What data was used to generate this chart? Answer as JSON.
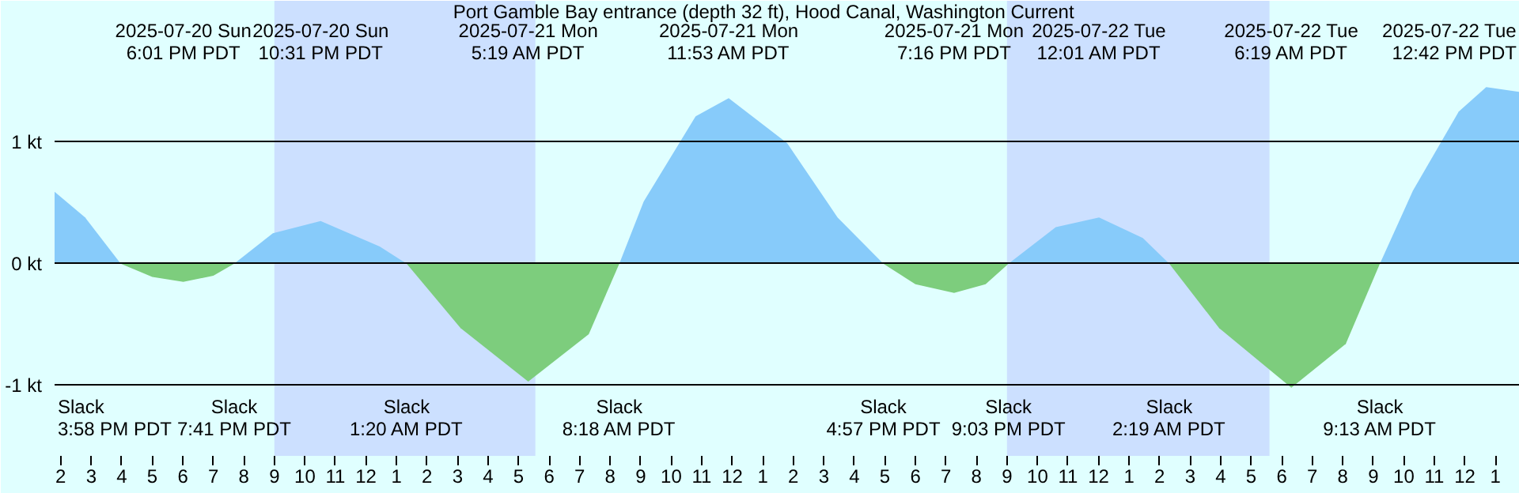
{
  "chart_data": {
    "type": "area",
    "title": "Port Gamble Bay entrance (depth 32 ft), Hood Canal, Washington Current",
    "x": [
      "2025-07-20T13:48",
      "2025-07-20T14:48",
      "2025-07-20T15:58",
      "2025-07-20T17:00",
      "2025-07-20T18:01",
      "2025-07-20T19:00",
      "2025-07-20T19:41",
      "2025-07-20T20:57",
      "2025-07-20T22:31",
      "2025-07-21T00:27",
      "2025-07-21T01:20",
      "2025-07-21T03:06",
      "2025-07-21T05:19",
      "2025-07-21T07:18",
      "2025-07-21T08:18",
      "2025-07-21T09:06",
      "2025-07-21T10:48",
      "2025-07-21T11:53",
      "2025-07-21T13:48",
      "2025-07-21T15:27",
      "2025-07-21T16:57",
      "2025-07-21T18:00",
      "2025-07-21T19:16",
      "2025-07-21T20:18",
      "2025-07-21T21:03",
      "2025-07-21T22:36",
      "2025-07-22T00:01",
      "2025-07-22T01:27",
      "2025-07-22T02:19",
      "2025-07-22T03:57",
      "2025-07-22T06:19",
      "2025-07-22T08:06",
      "2025-07-22T09:13",
      "2025-07-22T10:18",
      "2025-07-22T11:48",
      "2025-07-22T12:42",
      "2025-07-22T13:48"
    ],
    "series": [
      {
        "color": "#87cbfa",
        "values": [
          0.59,
          0.38,
          0,
          null,
          null,
          null,
          0,
          0.25,
          0.35,
          0.14,
          0,
          null,
          null,
          null,
          0,
          0.51,
          1.21,
          1.36,
          0.99,
          0.38,
          0,
          null,
          null,
          null,
          0,
          0.3,
          0.38,
          0.21,
          0,
          null,
          null,
          null,
          0,
          0.6,
          1.25,
          1.45,
          1.41
        ]
      },
      {
        "color": "#7dcd7d",
        "values": [
          null,
          null,
          0,
          -0.11,
          -0.15,
          -0.1,
          0,
          null,
          null,
          null,
          0,
          -0.53,
          -0.97,
          -0.58,
          0,
          null,
          null,
          null,
          null,
          null,
          0,
          -0.17,
          -0.24,
          -0.17,
          0,
          null,
          null,
          null,
          0,
          -0.53,
          -1.02,
          -0.66,
          0,
          null,
          null,
          null,
          null
        ]
      }
    ],
    "xlim": [
      "2025-07-20T13:48",
      "2025-07-22T13:48"
    ],
    "xticks": [
      {
        "value": "2025-07-20T14:00",
        "label": "2"
      },
      {
        "value": "2025-07-20T15:00",
        "label": "3"
      },
      {
        "value": "2025-07-20T16:00",
        "label": "4"
      },
      {
        "value": "2025-07-20T17:00",
        "label": "5"
      },
      {
        "value": "2025-07-20T18:00",
        "label": "6"
      },
      {
        "value": "2025-07-20T19:00",
        "label": "7"
      },
      {
        "value": "2025-07-20T20:00",
        "label": "8"
      },
      {
        "value": "2025-07-20T21:00",
        "label": "9"
      },
      {
        "value": "2025-07-20T22:00",
        "label": "10"
      },
      {
        "value": "2025-07-20T23:00",
        "label": "11"
      },
      {
        "value": "2025-07-21T00:00",
        "label": "12"
      },
      {
        "value": "2025-07-21T01:00",
        "label": "1"
      },
      {
        "value": "2025-07-21T02:00",
        "label": "2"
      },
      {
        "value": "2025-07-21T03:00",
        "label": "3"
      },
      {
        "value": "2025-07-21T04:00",
        "label": "4"
      },
      {
        "value": "2025-07-21T05:00",
        "label": "5"
      },
      {
        "value": "2025-07-21T06:00",
        "label": "6"
      },
      {
        "value": "2025-07-21T07:00",
        "label": "7"
      },
      {
        "value": "2025-07-21T08:00",
        "label": "8"
      },
      {
        "value": "2025-07-21T09:00",
        "label": "9"
      },
      {
        "value": "2025-07-21T10:00",
        "label": "10"
      },
      {
        "value": "2025-07-21T11:00",
        "label": "11"
      },
      {
        "value": "2025-07-21T12:00",
        "label": "12"
      },
      {
        "value": "2025-07-21T13:00",
        "label": "1"
      },
      {
        "value": "2025-07-21T14:00",
        "label": "2"
      },
      {
        "value": "2025-07-21T15:00",
        "label": "3"
      },
      {
        "value": "2025-07-21T16:00",
        "label": "4"
      },
      {
        "value": "2025-07-21T17:00",
        "label": "5"
      },
      {
        "value": "2025-07-21T18:00",
        "label": "6"
      },
      {
        "value": "2025-07-21T19:00",
        "label": "7"
      },
      {
        "value": "2025-07-21T20:00",
        "label": "8"
      },
      {
        "value": "2025-07-21T21:00",
        "label": "9"
      },
      {
        "value": "2025-07-21T22:00",
        "label": "10"
      },
      {
        "value": "2025-07-21T23:00",
        "label": "11"
      },
      {
        "value": "2025-07-22T00:00",
        "label": "12"
      },
      {
        "value": "2025-07-22T01:00",
        "label": "1"
      },
      {
        "value": "2025-07-22T02:00",
        "label": "2"
      },
      {
        "value": "2025-07-22T03:00",
        "label": "3"
      },
      {
        "value": "2025-07-22T04:00",
        "label": "4"
      },
      {
        "value": "2025-07-22T05:00",
        "label": "5"
      },
      {
        "value": "2025-07-22T06:00",
        "label": "6"
      },
      {
        "value": "2025-07-22T07:00",
        "label": "7"
      },
      {
        "value": "2025-07-22T08:00",
        "label": "8"
      },
      {
        "value": "2025-07-22T09:00",
        "label": "9"
      },
      {
        "value": "2025-07-22T10:00",
        "label": "10"
      },
      {
        "value": "2025-07-22T11:00",
        "label": "11"
      },
      {
        "value": "2025-07-22T12:00",
        "label": "12"
      },
      {
        "value": "2025-07-22T13:00",
        "label": "1"
      }
    ],
    "ylim": [
      -1.58,
      2.16
    ],
    "yticks": [
      {
        "value": 1,
        "label": "1 kt"
      },
      {
        "value": 0,
        "label": "0 kt"
      },
      {
        "value": -1,
        "label": "-1 kt"
      }
    ],
    "grid": "y",
    "bands": [
      {
        "axis": "x",
        "from": "2025-07-20T21:00",
        "to": "2025-07-21T05:33",
        "color": "#cce0ff"
      },
      {
        "axis": "x",
        "from": "2025-07-21T21:00",
        "to": "2025-07-22T05:36",
        "color": "#cce0ff"
      }
    ],
    "annotations": [
      "2025-07-20 Sun\n6:01 PM PDT",
      "2025-07-20 Sun\n10:31 PM PDT",
      "2025-07-21 Mon\n5:19 AM PDT",
      "2025-07-21 Mon\n11:53 AM PDT",
      "2025-07-21 Mon\n7:16 PM PDT",
      "2025-07-22 Tue\n12:01 AM PDT",
      "2025-07-22 Tue\n6:19 AM PDT",
      "2025-07-22 Tue\n12:42 PM PDT",
      "Slack\n3:58 PM PDT",
      "Slack\n7:41 PM PDT",
      "Slack\n1:20 AM PDT",
      "Slack\n8:18 AM PDT",
      "Slack\n4:57 PM PDT",
      "Slack\n9:03 PM PDT",
      "Slack\n2:19 AM PDT",
      "Slack\n9:13 AM PDT"
    ]
  }
}
